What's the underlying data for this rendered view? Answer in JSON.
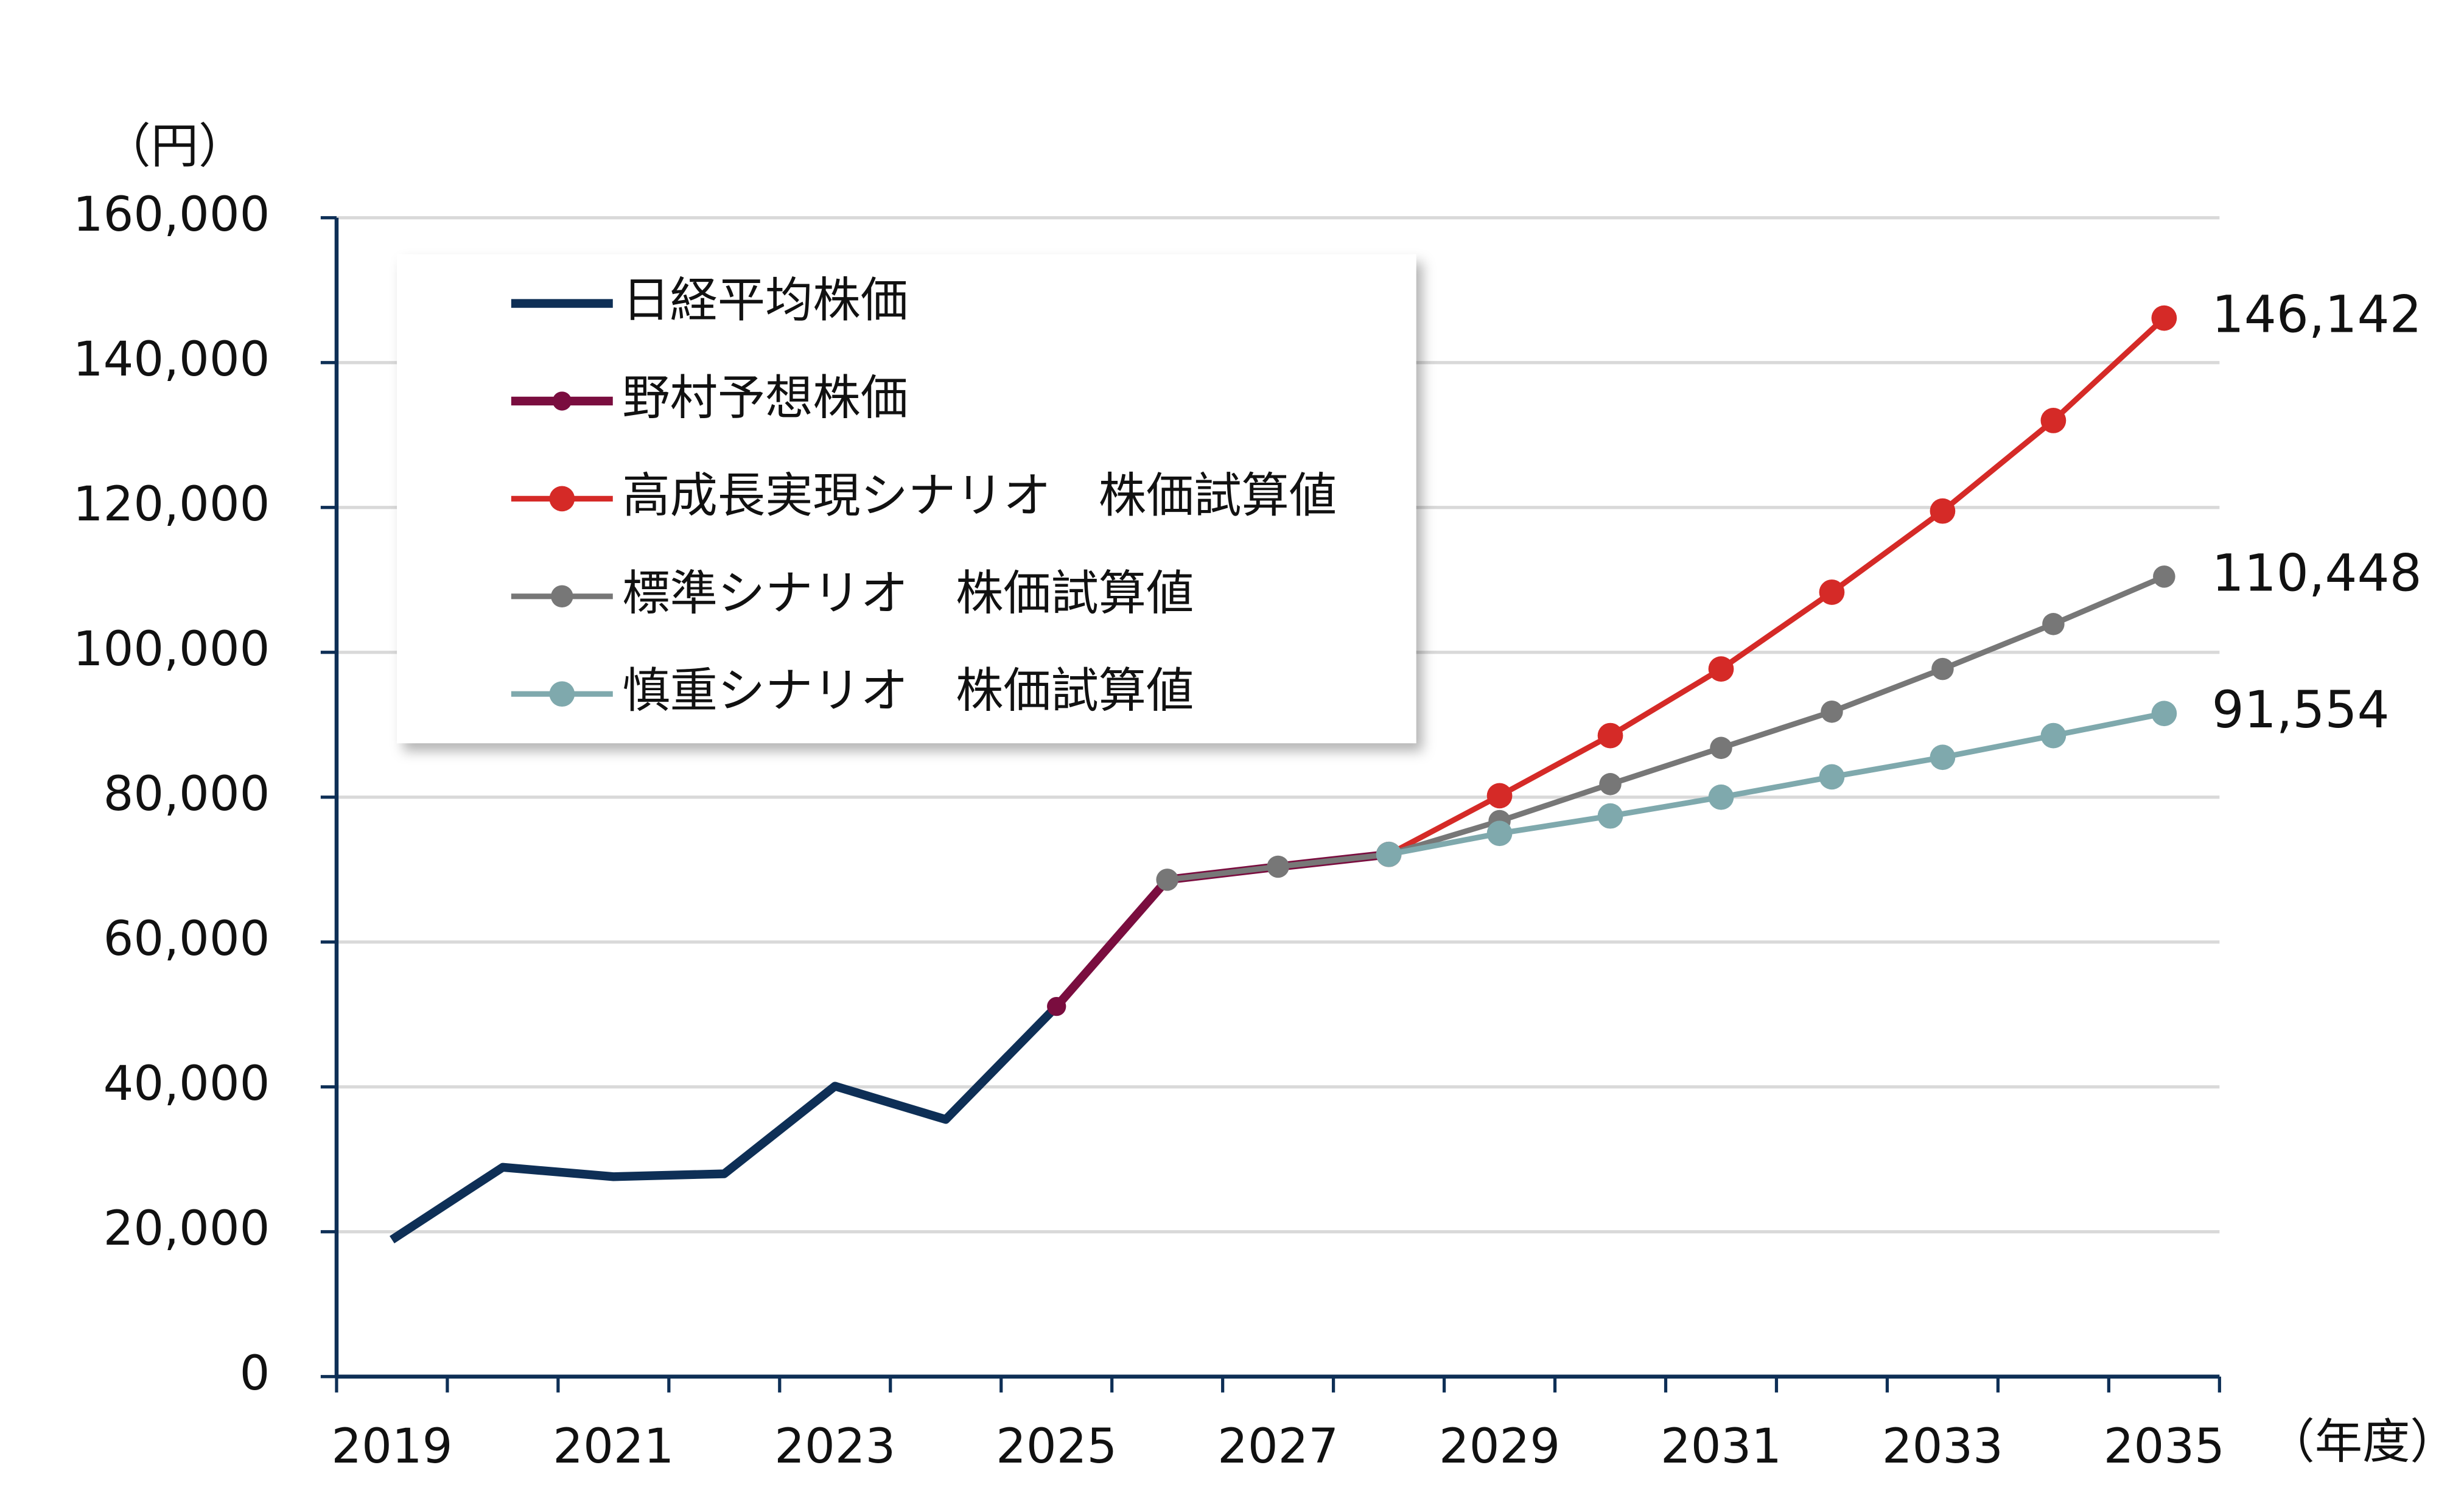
{
  "chart_data": {
    "type": "line",
    "y_unit": "（円）",
    "x_unit": "（年度）",
    "categories": [
      "2019",
      null,
      "2021",
      null,
      "2023",
      null,
      "2025",
      null,
      "2027",
      null,
      "2029",
      null,
      "2031",
      null,
      "2033",
      null,
      "2035"
    ],
    "ylim": [
      0,
      160000
    ],
    "yticks": [
      0,
      {
        "value": 20000,
        "label": "20,000"
      },
      {
        "value": 40000,
        "label": "40,000"
      },
      {
        "value": 60000,
        "label": "60,000"
      },
      {
        "value": 80000,
        "label": "80,000"
      },
      {
        "value": 100000,
        "label": "100,000"
      },
      {
        "value": 120000,
        "label": "120,000"
      },
      {
        "value": 140000,
        "label": "140,000"
      },
      {
        "value": 160000,
        "label": "160,000"
      }
    ],
    "grid": true,
    "legend": "upper left",
    "series": [
      {
        "name": "日経平均株価",
        "color": "#0e2f56",
        "values": [
          18900,
          28900,
          27600,
          28000,
          40100,
          35500,
          51100,
          null,
          null,
          null,
          null,
          null,
          null,
          null,
          null,
          null,
          null
        ]
      },
      {
        "name": "野村予想株価",
        "color": "#7a0d3f",
        "values": [
          null,
          null,
          null,
          null,
          null,
          null,
          51100,
          68600,
          70400,
          72100,
          null,
          null,
          null,
          null,
          null,
          null,
          null
        ]
      },
      {
        "name": "高成長実現シナリオ　株価試算値",
        "color": "#d52a27",
        "values": [
          null,
          null,
          null,
          null,
          null,
          null,
          null,
          null,
          null,
          72100,
          80200,
          88500,
          97700,
          108300,
          119500,
          132000,
          146142
        ],
        "value_labels": [
          null,
          null,
          null,
          null,
          null,
          null,
          null,
          null,
          null,
          null,
          null,
          null,
          null,
          null,
          null,
          null,
          "146,142"
        ]
      },
      {
        "name": "標準シナリオ　株価試算値",
        "color": "#777777",
        "values": [
          null,
          null,
          null,
          null,
          null,
          null,
          null,
          68600,
          70400,
          72100,
          76700,
          81800,
          86800,
          91800,
          97700,
          103900,
          110448
        ],
        "value_labels": [
          null,
          null,
          null,
          null,
          null,
          null,
          null,
          null,
          null,
          null,
          null,
          null,
          null,
          null,
          null,
          null,
          "110,448"
        ]
      },
      {
        "name": "慎重シナリオ　株価試算値",
        "color": "#7fa9ad",
        "values": [
          null,
          null,
          null,
          null,
          null,
          null,
          null,
          null,
          null,
          72100,
          75000,
          77400,
          80000,
          82800,
          85500,
          88500,
          91554
        ],
        "value_labels": [
          null,
          null,
          null,
          null,
          null,
          null,
          null,
          null,
          null,
          null,
          null,
          null,
          null,
          null,
          null,
          null,
          "91,554"
        ]
      }
    ]
  }
}
